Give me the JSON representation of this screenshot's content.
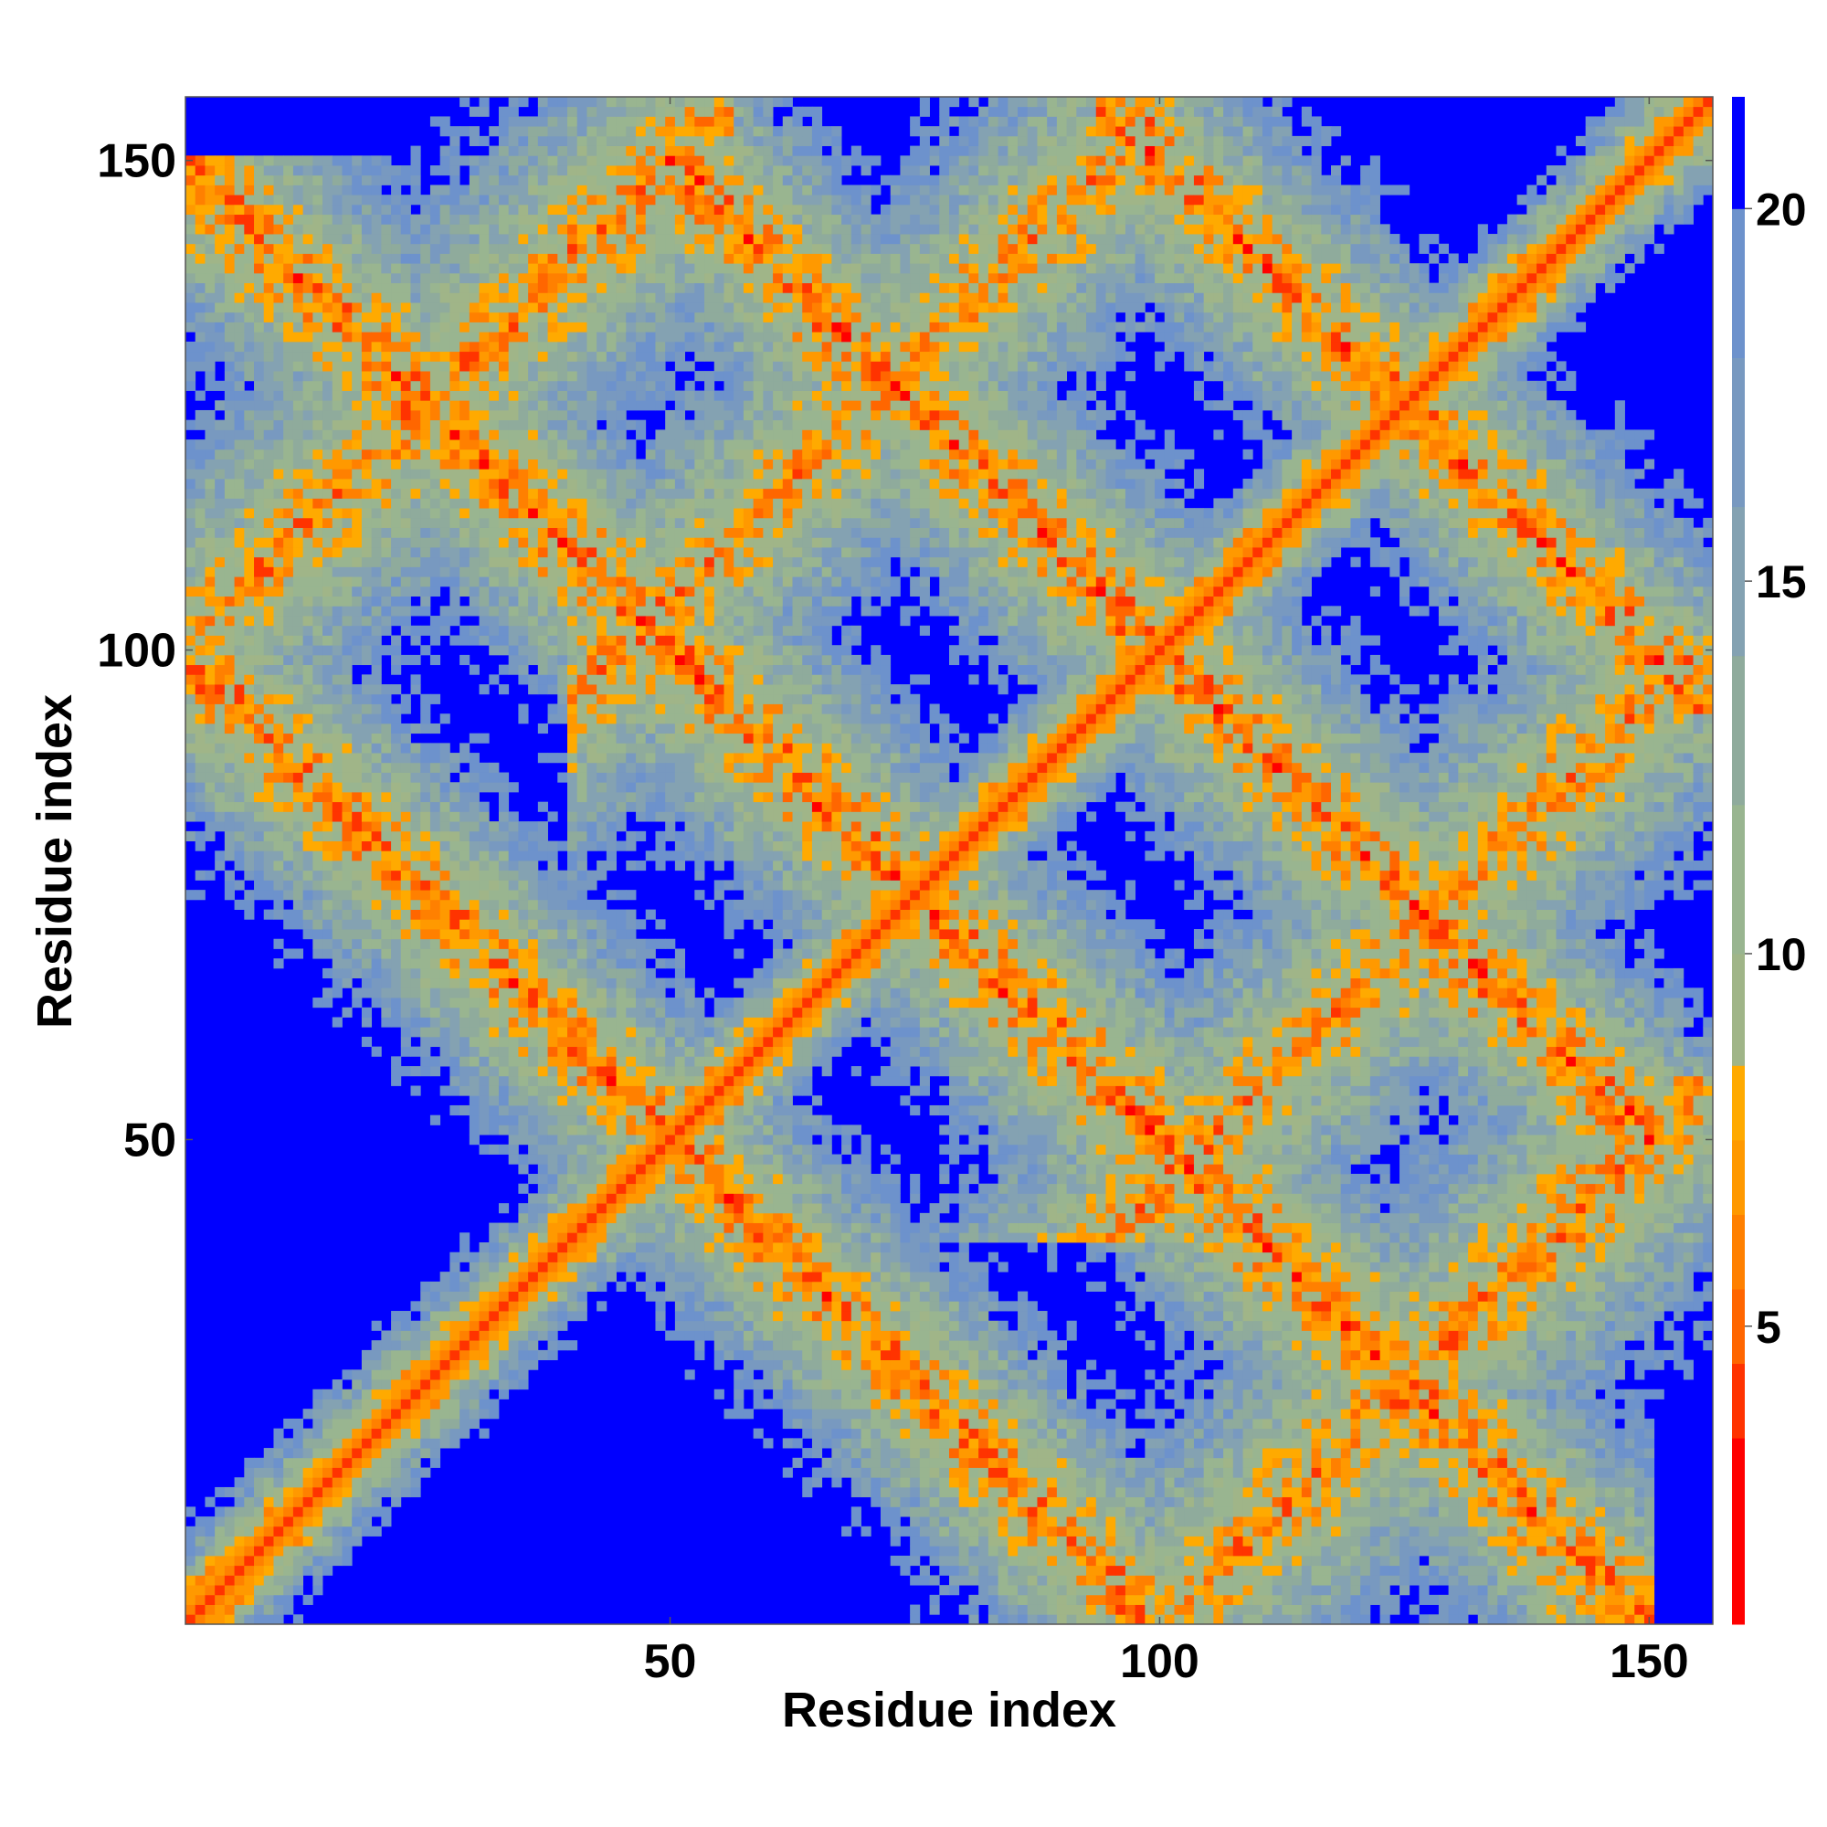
{
  "chart_data": {
    "type": "heatmap",
    "title": "",
    "xlabel": "Residue index",
    "ylabel": "Residue index",
    "xlim": [
      1,
      156
    ],
    "ylim": [
      1,
      156
    ],
    "x_ticks": [
      50,
      100,
      150
    ],
    "y_ticks": [
      50,
      100,
      150
    ],
    "n_residues": 156,
    "colorbar": {
      "ticks": [
        5,
        10,
        15,
        20
      ],
      "range": [
        1,
        21.5
      ],
      "bands": [
        {
          "to": 3.5,
          "color": "#ff0000"
        },
        {
          "to": 4.5,
          "color": "#ff3300"
        },
        {
          "to": 5.5,
          "color": "#ff6600"
        },
        {
          "to": 6.5,
          "color": "#ff8000"
        },
        {
          "to": 7.5,
          "color": "#ff9900"
        },
        {
          "to": 8.5,
          "color": "#ffaa00"
        },
        {
          "to": 10.0,
          "color": "#a0b588"
        },
        {
          "to": 12.0,
          "color": "#99b590"
        },
        {
          "to": 14.0,
          "color": "#8fab9c"
        },
        {
          "to": 16.0,
          "color": "#84a2b2"
        },
        {
          "to": 18.0,
          "color": "#7899c0"
        },
        {
          "to": 20.0,
          "color": "#6d92cc"
        },
        {
          "to": 21.5,
          "color": "#0000ff"
        }
      ],
      "cutoff_color": "#0000ff"
    },
    "structure_description": {
      "main_diagonal": true,
      "anti_diagonal_bands": [
        {
          "segment_a": [
            1,
            50
          ],
          "segment_b": [
            50,
            95
          ]
        },
        {
          "segment_a": [
            96,
            150
          ],
          "segment_b": [
            1,
            55
          ]
        },
        {
          "segment_a": [
            55,
            95
          ],
          "segment_b": [
            95,
            150
          ]
        }
      ],
      "secondary_bands_parallel": [
        {
          "i_range": [
            35,
            85
          ],
          "j_offset": 60
        },
        {
          "i_range": [
            95,
            150
          ],
          "j_offset": -40
        }
      ]
    }
  }
}
